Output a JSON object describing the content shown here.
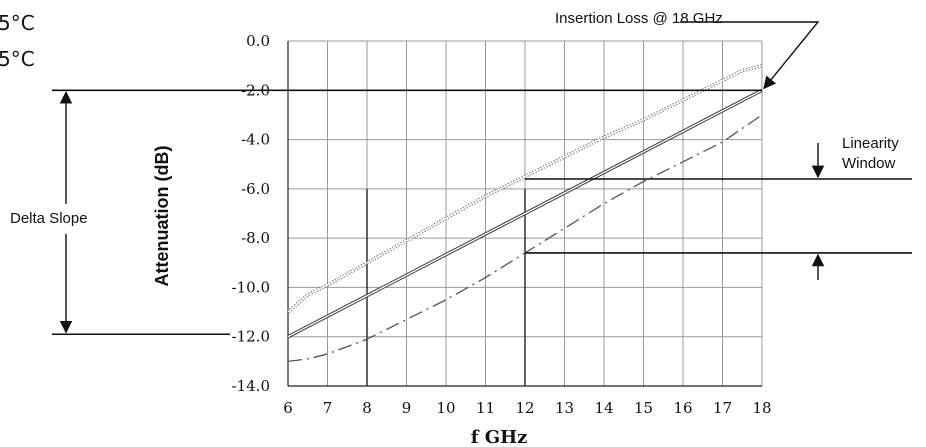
{
  "chart_data": {
    "type": "line",
    "xlabel": "f GHz",
    "ylabel": "Attenuation (dB)",
    "xlim": [
      6,
      18
    ],
    "ylim": [
      -14,
      0
    ],
    "x_ticks": [
      "6",
      "7",
      "8",
      "9",
      "10",
      "11",
      "12",
      "13",
      "14",
      "15",
      "16",
      "17",
      "18"
    ],
    "y_ticks": [
      "0.0",
      "-2.0",
      "-4.0",
      "-6.0",
      "-8.0",
      "-10.0",
      "-12.0",
      "-14.0"
    ],
    "x_tick_values": [
      6,
      7,
      8,
      9,
      10,
      11,
      12,
      13,
      14,
      15,
      16,
      17,
      18
    ],
    "y_tick_values": [
      0,
      -2,
      -4,
      -6,
      -8,
      -10,
      -12,
      -14
    ],
    "grid": true,
    "legend_fragments": [
      "5°C",
      "5°C"
    ],
    "series": [
      {
        "style": "dotted",
        "x": [
          6,
          6.5,
          7,
          8,
          9,
          10,
          11,
          12,
          13,
          14,
          15,
          16,
          17,
          17.5,
          18
        ],
        "y": [
          -11.0,
          -10.3,
          -9.9,
          -9.0,
          -8.1,
          -7.2,
          -6.3,
          -5.5,
          -4.7,
          -3.9,
          -3.2,
          -2.4,
          -1.6,
          -1.2,
          -1.0
        ]
      },
      {
        "style": "solid-double",
        "x": [
          6,
          18
        ],
        "y": [
          -12.0,
          -2.0
        ]
      },
      {
        "style": "dash-dot",
        "x": [
          6,
          6.5,
          7,
          8,
          9,
          10,
          11,
          12,
          13,
          14,
          15,
          16,
          17,
          18
        ],
        "y": [
          -13.0,
          -12.9,
          -12.7,
          -12.1,
          -11.3,
          -10.5,
          -9.6,
          -8.6,
          -7.6,
          -6.6,
          -5.7,
          -4.9,
          -4.1,
          -3.0
        ]
      }
    ],
    "annotations": {
      "insertion_loss": "Insertion Loss @ 18 GHz",
      "linearity_line1": "Linearity",
      "linearity_line2": "Window",
      "delta_slope": "Delta Slope"
    },
    "reference_levels": {
      "insertion_loss_level": -2.0,
      "delta_slope_bottom": -11.9,
      "linearity_top": -5.6,
      "linearity_bottom": -8.6,
      "linearity_start_x": 12
    }
  }
}
